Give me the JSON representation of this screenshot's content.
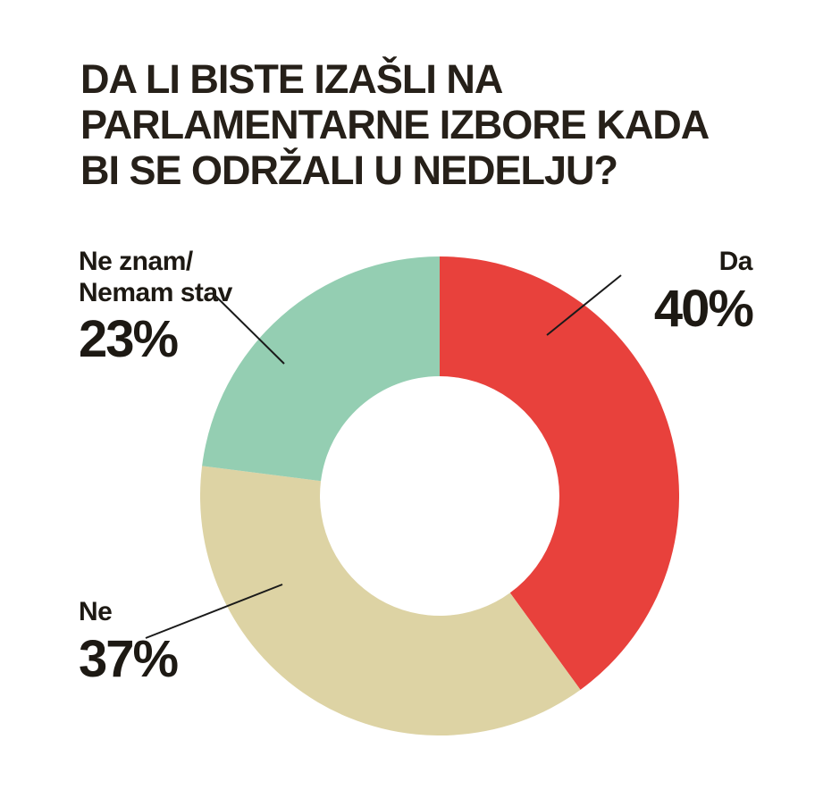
{
  "title": "DA LI BISTE IZAŠLI NA\nPARLAMENTARNE IZBORE KADA\nBI SE ODRŽALI U NEDELJU?",
  "colors": {
    "text": "#262019",
    "line": "#1a1a1a",
    "background": "#ffffff",
    "da": "#e8413c",
    "ne": "#ddd3a4",
    "ne_znam": "#94ceb2"
  },
  "callouts": {
    "da": {
      "label": "Da",
      "value": "40%"
    },
    "ne": {
      "label": "Ne",
      "value": "37%"
    },
    "ne_znam": {
      "label": "Ne znam/\nNemam stav",
      "value": "23%"
    }
  },
  "chart_data": {
    "type": "pie",
    "subtype": "donut",
    "title": "DA LI BISTE IZAŠLI NA PARLAMENTARNE IZBORE KADA BI SE ODRŽALI U NEDELJU?",
    "categories": [
      "Da",
      "Ne",
      "Ne znam/Nemam stav"
    ],
    "values": [
      40,
      37,
      23
    ],
    "unit": "%",
    "value_labels": [
      "40%",
      "37%",
      "23%"
    ],
    "colors": [
      "#e8413c",
      "#ddd3a4",
      "#94ceb2"
    ],
    "start_angle_deg": 0,
    "direction": "clockwise",
    "inner_radius_ratio": 0.5,
    "legend_position": "none",
    "grid": false
  }
}
